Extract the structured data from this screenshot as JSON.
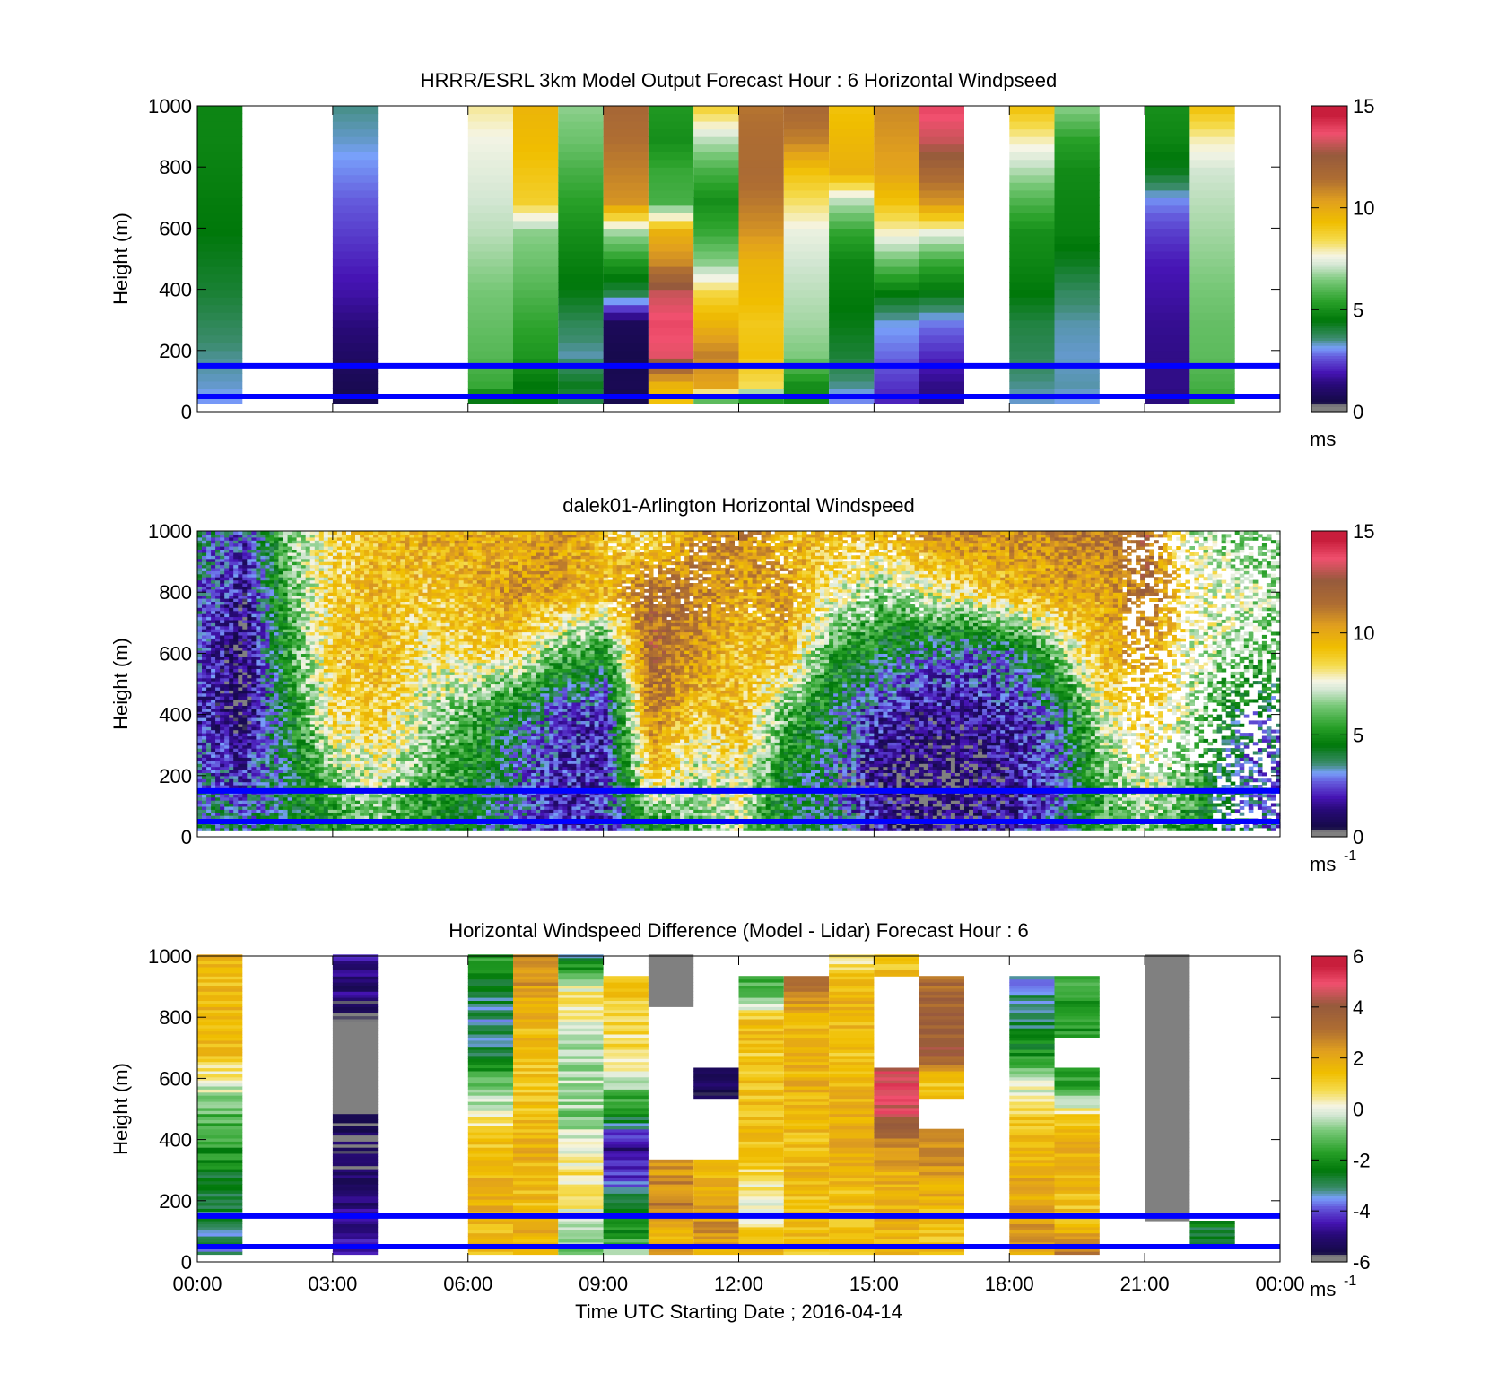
{
  "chart_data": [
    {
      "type": "heatmap",
      "title": "HRRR/ESRL 3km Model Output   Forecast Hour : 6 Horizontal Windpseed",
      "ylabel": "Height (m)",
      "xlabel": "",
      "ylim": [
        0,
        1000
      ],
      "xlim_hours": [
        0,
        24
      ],
      "yticks": [
        "0",
        "200",
        "400",
        "600",
        "800",
        "1000"
      ],
      "xticks": [
        "00:00",
        "03:00",
        "06:00",
        "09:00",
        "12:00",
        "15:00",
        "18:00",
        "21:00",
        "00:00"
      ],
      "show_xtick_labels": false,
      "colorbar": {
        "min": 0,
        "max": 15,
        "ticks": [
          "0",
          "5",
          "10",
          "15"
        ],
        "unit": "ms",
        "unit_sup": ""
      },
      "reference_lines_m": [
        50,
        150
      ],
      "curve": false,
      "kind": "model",
      "columns_hours_start": [
        0,
        3,
        6,
        7,
        8,
        9,
        10,
        11,
        12,
        13,
        14,
        15,
        16,
        18,
        19,
        21,
        22
      ],
      "profile_heights_m": [
        975,
        875,
        775,
        675,
        575,
        475,
        375,
        275,
        175,
        75,
        25
      ],
      "values": [
        [
          4.8,
          4.8,
          4.7,
          4.6,
          4.5,
          4.3,
          4.1,
          3.8,
          3.5,
          3.3,
          3.1
        ],
        [
          3.5,
          3.3,
          3.0,
          2.7,
          2.4,
          2.1,
          1.8,
          1.4,
          1.0,
          0.7,
          0.6
        ],
        [
          8.0,
          7.6,
          7.4,
          7.2,
          7.0,
          6.7,
          6.4,
          6.2,
          6.0,
          5.6,
          4.4
        ],
        [
          9.6,
          9.4,
          9.1,
          8.8,
          6.6,
          6.3,
          5.9,
          5.5,
          5.2,
          4.5,
          4.6
        ],
        [
          6.6,
          6.3,
          5.8,
          5.4,
          5.0,
          4.7,
          4.4,
          3.8,
          3.4,
          4.3,
          4.0
        ],
        [
          11.8,
          11.4,
          11.0,
          10.6,
          6.8,
          5.2,
          3.9,
          0.8,
          0.6,
          0.7,
          0.6
        ],
        [
          5.2,
          5.0,
          5.6,
          5.8,
          9.8,
          10.8,
          13.2,
          13.8,
          13.5,
          9.7,
          9.2
        ],
        [
          8.6,
          7.0,
          5.8,
          5.0,
          5.6,
          6.6,
          8.6,
          9.7,
          11.0,
          10.2,
          6.1
        ],
        [
          11.3,
          11.5,
          11.6,
          11.2,
          10.6,
          9.7,
          9.4,
          9.0,
          9.2,
          8.4,
          5.3
        ],
        [
          11.7,
          11.0,
          9.2,
          8.3,
          7.5,
          7.2,
          7.0,
          6.8,
          6.5,
          5.0,
          4.9
        ],
        [
          9.2,
          9.5,
          9.8,
          7.0,
          5.5,
          4.8,
          4.6,
          4.4,
          4.1,
          3.5,
          3.0
        ],
        [
          10.8,
          10.5,
          10.2,
          9.2,
          7.8,
          6.2,
          4.5,
          3.2,
          2.8,
          2.3,
          2.1
        ],
        [
          13.8,
          13.2,
          11.8,
          10.6,
          7.5,
          5.6,
          4.4,
          2.9,
          2.2,
          1.5,
          1.4
        ],
        [
          9.1,
          7.9,
          6.9,
          5.9,
          5.0,
          4.8,
          4.5,
          4.0,
          3.8,
          3.5,
          3.3
        ],
        [
          6.5,
          5.4,
          4.9,
          4.8,
          4.7,
          4.3,
          3.7,
          3.4,
          3.3,
          3.4,
          3.2
        ],
        [
          5.0,
          4.8,
          4.3,
          3.0,
          2.4,
          2.0,
          1.8,
          1.6,
          1.5,
          1.5,
          1.4
        ],
        [
          9.1,
          7.9,
          7.2,
          7.0,
          6.8,
          6.6,
          6.4,
          6.2,
          6.1,
          5.8,
          5.5
        ]
      ]
    },
    {
      "type": "heatmap",
      "title": "dalek01-Arlington  Horizontal Windspeed",
      "ylabel": "Height (m)",
      "xlabel": "",
      "ylim": [
        0,
        1000
      ],
      "xlim_hours": [
        0,
        24
      ],
      "yticks": [
        "0",
        "200",
        "400",
        "600",
        "800",
        "1000"
      ],
      "xticks": [
        "00:00",
        "03:00",
        "06:00",
        "09:00",
        "12:00",
        "15:00",
        "18:00",
        "21:00",
        "00:00"
      ],
      "show_xtick_labels": false,
      "colorbar": {
        "min": 0,
        "max": 15,
        "ticks": [
          "0",
          "5",
          "10",
          "15"
        ],
        "unit": "ms",
        "unit_sup": "-1"
      },
      "reference_lines_m": [
        50,
        150
      ],
      "curve": true,
      "curve_peak_hour": 20,
      "curve_peak_m": 900,
      "curve_period_hours": 21.3,
      "kind": "lidar",
      "profile_hours": [
        0,
        1,
        2,
        3,
        4,
        5,
        6,
        7,
        8,
        9,
        10,
        11,
        12,
        13,
        14,
        15,
        16,
        17,
        18,
        19,
        20,
        21,
        22,
        23,
        24
      ],
      "profile_heights_m": [
        0,
        200,
        400,
        600,
        800,
        1000
      ],
      "values": [
        [
          4.0,
          3.0,
          2.0,
          2.5,
          3.0,
          3.5
        ],
        [
          3.5,
          2.0,
          1.0,
          0.8,
          1.5,
          2.5
        ],
        [
          4.5,
          4.0,
          4.8,
          5.5,
          6.0,
          6.5
        ],
        [
          5.0,
          6.5,
          8.5,
          9.0,
          8.8,
          8.5
        ],
        [
          5.5,
          7.5,
          9.0,
          9.5,
          9.5,
          9.5
        ],
        [
          4.5,
          6.0,
          7.0,
          8.0,
          9.0,
          10.0
        ],
        [
          4.0,
          5.0,
          6.0,
          8.5,
          9.5,
          10.0
        ],
        [
          3.0,
          3.0,
          4.0,
          8.5,
          10.5,
          9.5
        ],
        [
          2.0,
          2.0,
          2.5,
          6.0,
          10.0,
          10.5
        ],
        [
          2.5,
          2.0,
          2.0,
          5.0,
          9.5,
          9.0
        ],
        [
          4.0,
          9.0,
          11.0,
          12.0,
          11.5,
          8.0
        ],
        [
          6.0,
          7.0,
          9.0,
          10.5,
          11.0,
          10.5
        ],
        [
          7.0,
          8.0,
          9.5,
          9.0,
          10.0,
          11.0
        ],
        [
          4.0,
          4.5,
          6.0,
          9.5,
          10.5,
          9.5
        ],
        [
          3.5,
          3.5,
          4.0,
          5.5,
          8.0,
          9.5
        ],
        [
          2.0,
          1.5,
          2.0,
          4.5,
          6.5,
          9.5
        ],
        [
          1.0,
          1.0,
          1.5,
          3.5,
          7.5,
          10.5
        ],
        [
          1.5,
          1.0,
          1.5,
          3.0,
          8.5,
          11.0
        ],
        [
          2.0,
          1.5,
          2.0,
          3.5,
          9.5,
          10.5
        ],
        [
          3.0,
          2.5,
          3.0,
          6.5,
          10.0,
          11.0
        ],
        [
          5.5,
          6.0,
          7.5,
          9.5,
          10.0,
          11.5
        ],
        [
          6.5,
          7.5,
          9.0,
          10.5,
          11.5,
          12.0
        ],
        [
          5.0,
          6.0,
          7.0,
          7.5,
          8.0,
          7.0
        ],
        [
          3.5,
          3.0,
          4.0,
          6.5,
          7.5,
          6.0
        ],
        [
          3.0,
          2.5,
          3.5,
          6.0,
          6.5,
          6.0
        ]
      ]
    },
    {
      "type": "heatmap",
      "title": "Horizontal Windspeed Difference (Model - Lidar) Forecast Hour : 6",
      "ylabel": "Height (m)",
      "xlabel": "Time UTC  Starting Date ; 2016-04-14",
      "ylim": [
        0,
        1000
      ],
      "xlim_hours": [
        0,
        24
      ],
      "yticks": [
        "0",
        "200",
        "400",
        "600",
        "800",
        "1000"
      ],
      "xticks": [
        "00:00",
        "03:00",
        "06:00",
        "09:00",
        "12:00",
        "15:00",
        "18:00",
        "21:00",
        "00:00"
      ],
      "show_xtick_labels": true,
      "colorbar": {
        "min": -6,
        "max": 6,
        "ticks": [
          "-6",
          "-4",
          "-2",
          "0",
          "2",
          "4",
          "6"
        ],
        "unit": "ms",
        "unit_sup": "-1"
      },
      "reference_lines_m": [
        50,
        150
      ],
      "curve": false,
      "kind": "difference",
      "columns_hours_start": [
        0,
        3,
        6,
        7,
        8,
        9,
        10,
        11,
        12,
        13,
        14,
        15,
        16,
        18,
        19,
        21,
        22
      ],
      "profile_heights_m": [
        975,
        875,
        775,
        675,
        575,
        475,
        375,
        275,
        175,
        75,
        25
      ],
      "values": [
        [
          1.6,
          1.5,
          1.6,
          1.4,
          0.0,
          -1.2,
          -1.8,
          -2.4,
          -2.8,
          -3.0,
          -3.2
        ],
        [
          -4.8,
          -5.0,
          -6.5,
          -6.5,
          -6.5,
          -5.8,
          -5.4,
          -5.2,
          -5.0,
          -4.8,
          -4.6
        ],
        [
          -1.8,
          -2.8,
          -3.2,
          -2.6,
          -1.2,
          0.4,
          1.4,
          1.6,
          1.8,
          1.5,
          1.6
        ],
        [
          2.6,
          2.2,
          1.6,
          1.4,
          1.2,
          1.4,
          1.8,
          1.6,
          1.5,
          1.8,
          2.0
        ],
        [
          -2.4,
          0.6,
          0.0,
          -0.6,
          -0.4,
          -0.8,
          0.2,
          0.6,
          0.4,
          -0.8,
          -1.0
        ],
        [
          null,
          1.2,
          0.8,
          0.6,
          -0.6,
          -2.4,
          -4.8,
          -4.2,
          -2.2,
          -1.8,
          -0.8
        ],
        [
          -6.5,
          -6.5,
          null,
          null,
          null,
          null,
          null,
          2.4,
          3.0,
          1.4,
          2.2
        ],
        [
          null,
          null,
          null,
          null,
          -5.4,
          null,
          null,
          1.6,
          2.4,
          2.6,
          1.8
        ],
        [
          null,
          -1.4,
          1.6,
          1.2,
          1.4,
          1.4,
          1.4,
          0.6,
          -0.2,
          1.2,
          2.0
        ],
        [
          null,
          2.8,
          1.6,
          1.6,
          1.8,
          1.6,
          1.4,
          1.6,
          1.4,
          1.6,
          1.4
        ],
        [
          0.6,
          1.8,
          1.6,
          1.4,
          1.6,
          1.8,
          2.2,
          1.6,
          1.4,
          1.2,
          1.6
        ],
        [
          1.4,
          null,
          null,
          null,
          4.8,
          4.6,
          2.6,
          1.8,
          1.8,
          1.6,
          1.4
        ],
        [
          null,
          3.4,
          3.6,
          3.8,
          1.2,
          null,
          2.6,
          2.2,
          1.6,
          1.4,
          1.6
        ],
        [
          null,
          -3.2,
          -2.8,
          -2.0,
          -0.2,
          1.2,
          1.6,
          1.8,
          2.2,
          2.4,
          2.0
        ],
        [
          null,
          -1.6,
          -1.8,
          null,
          -1.6,
          0.8,
          1.8,
          1.6,
          1.4,
          2.0,
          2.6
        ],
        [
          -6.5,
          -6.5,
          -6.5,
          -6.5,
          -6.5,
          -6.5,
          -6.5,
          -6.5,
          -6.5,
          null,
          null
        ],
        [
          null,
          null,
          null,
          null,
          null,
          null,
          null,
          null,
          null,
          -2.6,
          null
        ]
      ]
    }
  ]
}
